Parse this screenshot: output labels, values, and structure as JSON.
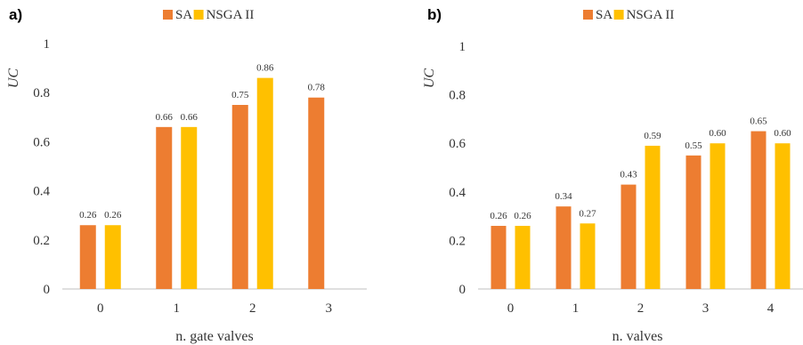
{
  "colors": {
    "SA": "#ED7D31",
    "NSGA II": "#FFC000"
  },
  "chart_data": [
    {
      "type": "bar",
      "panel_label": "a)",
      "xlabel": "n. gate valves",
      "ylabel": "UC",
      "ylim": [
        0,
        1
      ],
      "yticks": [
        "0",
        "0.2",
        "0.4",
        "0.6",
        "0.8",
        "1"
      ],
      "categories": [
        "0",
        "1",
        "2",
        "3"
      ],
      "legend": {
        "placement": "top-center",
        "entries": [
          "SA",
          "NSGA II"
        ]
      },
      "series": [
        {
          "name": "SA",
          "values": [
            0.26,
            0.66,
            0.75,
            0.78
          ],
          "labels": [
            "0.26",
            "0.66",
            "0.75",
            "0.78"
          ]
        },
        {
          "name": "NSGA II",
          "values": [
            0.26,
            0.66,
            0.86,
            null
          ],
          "labels": [
            "0.26",
            "0.66",
            "0.86",
            null
          ]
        }
      ]
    },
    {
      "type": "bar",
      "panel_label": "b)",
      "xlabel": "n. valves",
      "ylabel": "UC",
      "ylim": [
        0,
        1
      ],
      "yticks": [
        "0",
        "0.2",
        "0.4",
        "0.6",
        "0.8",
        "1"
      ],
      "categories": [
        "0",
        "1",
        "2",
        "3",
        "4"
      ],
      "legend": {
        "placement": "top-center",
        "entries": [
          "SA",
          "NSGA II"
        ]
      },
      "series": [
        {
          "name": "SA",
          "values": [
            0.26,
            0.34,
            0.43,
            0.55,
            0.65
          ],
          "labels": [
            "0.26",
            "0.34",
            "0.43",
            "0.55",
            "0.65"
          ]
        },
        {
          "name": "NSGA II",
          "values": [
            0.26,
            0.27,
            0.59,
            0.6,
            0.6
          ],
          "labels": [
            "0.26",
            "0.27",
            "0.59",
            "0.60",
            "0.60"
          ]
        }
      ]
    }
  ]
}
